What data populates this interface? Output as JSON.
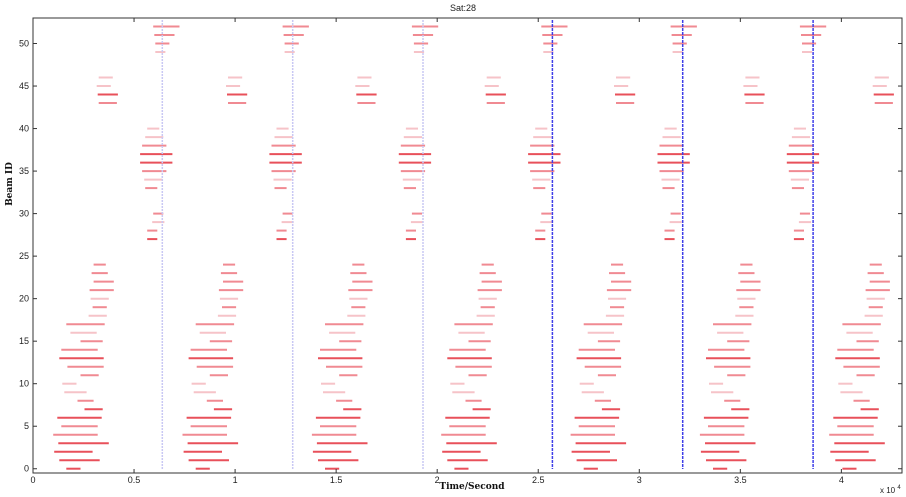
{
  "chart_data": {
    "type": "scatter",
    "title": "Sat:28",
    "xlabel": "Time/Second",
    "ylabel": "Beam ID",
    "x_multiplier_label": "x 10",
    "x_multiplier_exp": "4",
    "xlim": [
      0,
      43000
    ],
    "ylim": [
      -0.5,
      53
    ],
    "xticks": [
      0,
      5000,
      10000,
      15000,
      20000,
      25000,
      30000,
      35000,
      40000
    ],
    "xtick_labels": [
      "0",
      "0.5",
      "1",
      "1.5",
      "2",
      "2.5",
      "3",
      "3.5",
      "4"
    ],
    "yticks": [
      0,
      5,
      10,
      15,
      20,
      25,
      30,
      35,
      40,
      45,
      50
    ],
    "ytick_labels": [
      "0",
      "5",
      "10",
      "15",
      "20",
      "25",
      "30",
      "35",
      "40",
      "45",
      "50"
    ],
    "grid": false,
    "colors": {
      "beam_strong": "#e8505a",
      "beam_medium": "#f08a92",
      "beam_light": "#f6c3c8",
      "marker_light": "#c9c8f4",
      "marker_dark": "#3f3fe8"
    },
    "pass_period": 6400,
    "first_pass_center": 300,
    "num_passes": 7,
    "vertical_markers": [
      {
        "x": 6400,
        "style": "light"
      },
      {
        "x": 12850,
        "style": "light"
      },
      {
        "x": 19300,
        "style": "light"
      },
      {
        "x": 25700,
        "style": "dark"
      },
      {
        "x": 32150,
        "style": "dark"
      },
      {
        "x": 38600,
        "style": "dark"
      }
    ],
    "beam_profile": [
      {
        "beam": 0,
        "offset": 1700,
        "half_width": 350,
        "intensity": "strong"
      },
      {
        "beam": 1,
        "offset": 2000,
        "half_width": 1000,
        "intensity": "strong"
      },
      {
        "beam": 2,
        "offset": 1700,
        "half_width": 950,
        "intensity": "strong"
      },
      {
        "beam": 3,
        "offset": 2200,
        "half_width": 1250,
        "intensity": "strong"
      },
      {
        "beam": 4,
        "offset": 1800,
        "half_width": 1100,
        "intensity": "medium"
      },
      {
        "beam": 5,
        "offset": 2000,
        "half_width": 900,
        "intensity": "medium"
      },
      {
        "beam": 6,
        "offset": 2000,
        "half_width": 1100,
        "intensity": "strong"
      },
      {
        "beam": 7,
        "offset": 2700,
        "half_width": 450,
        "intensity": "strong"
      },
      {
        "beam": 8,
        "offset": 2300,
        "half_width": 400,
        "intensity": "medium"
      },
      {
        "beam": 9,
        "offset": 1800,
        "half_width": 550,
        "intensity": "light"
      },
      {
        "beam": 10,
        "offset": 1500,
        "half_width": 350,
        "intensity": "light"
      },
      {
        "beam": 11,
        "offset": 2500,
        "half_width": 450,
        "intensity": "medium"
      },
      {
        "beam": 12,
        "offset": 2300,
        "half_width": 900,
        "intensity": "medium"
      },
      {
        "beam": 13,
        "offset": 2100,
        "half_width": 1100,
        "intensity": "strong"
      },
      {
        "beam": 14,
        "offset": 2000,
        "half_width": 900,
        "intensity": "medium"
      },
      {
        "beam": 15,
        "offset": 2600,
        "half_width": 550,
        "intensity": "medium"
      },
      {
        "beam": 16,
        "offset": 2200,
        "half_width": 650,
        "intensity": "light"
      },
      {
        "beam": 17,
        "offset": 2300,
        "half_width": 950,
        "intensity": "medium"
      },
      {
        "beam": 18,
        "offset": 2900,
        "half_width": 450,
        "intensity": "light"
      },
      {
        "beam": 19,
        "offset": 3000,
        "half_width": 350,
        "intensity": "medium"
      },
      {
        "beam": 20,
        "offset": 3000,
        "half_width": 450,
        "intensity": "light"
      },
      {
        "beam": 21,
        "offset": 3100,
        "half_width": 600,
        "intensity": "medium"
      },
      {
        "beam": 22,
        "offset": 3200,
        "half_width": 500,
        "intensity": "medium"
      },
      {
        "beam": 23,
        "offset": 3000,
        "half_width": 400,
        "intensity": "medium"
      },
      {
        "beam": 24,
        "offset": 3000,
        "half_width": 300,
        "intensity": "medium"
      },
      {
        "beam": 27,
        "offset": 5600,
        "half_width": 250,
        "intensity": "strong"
      },
      {
        "beam": 28,
        "offset": 5600,
        "half_width": 250,
        "intensity": "medium"
      },
      {
        "beam": 29,
        "offset": 5900,
        "half_width": 300,
        "intensity": "light"
      },
      {
        "beam": 30,
        "offset": 5900,
        "half_width": 250,
        "intensity": "medium"
      },
      {
        "beam": 33,
        "offset": 5550,
        "half_width": 300,
        "intensity": "medium"
      },
      {
        "beam": 34,
        "offset": 5650,
        "half_width": 450,
        "intensity": "light"
      },
      {
        "beam": 35,
        "offset": 5700,
        "half_width": 600,
        "intensity": "medium"
      },
      {
        "beam": 36,
        "offset": 5800,
        "half_width": 800,
        "intensity": "strong"
      },
      {
        "beam": 37,
        "offset": 5800,
        "half_width": 800,
        "intensity": "strong"
      },
      {
        "beam": 38,
        "offset": 5700,
        "half_width": 600,
        "intensity": "medium"
      },
      {
        "beam": 39,
        "offset": 5700,
        "half_width": 450,
        "intensity": "light"
      },
      {
        "beam": 40,
        "offset": 5650,
        "half_width": 300,
        "intensity": "light"
      },
      {
        "beam": 43,
        "offset": 3400,
        "half_width": 450,
        "intensity": "medium"
      },
      {
        "beam": 44,
        "offset": 3400,
        "half_width": 500,
        "intensity": "strong"
      },
      {
        "beam": 45,
        "offset": 3200,
        "half_width": 350,
        "intensity": "light"
      },
      {
        "beam": 46,
        "offset": 3300,
        "half_width": 350,
        "intensity": "light"
      },
      {
        "beam": 49,
        "offset": 6000,
        "half_width": 250,
        "intensity": "light"
      },
      {
        "beam": 50,
        "offset": 6100,
        "half_width": 350,
        "intensity": "medium"
      },
      {
        "beam": 51,
        "offset": 6200,
        "half_width": 500,
        "intensity": "medium"
      },
      {
        "beam": 52,
        "offset": 6300,
        "half_width": 650,
        "intensity": "medium"
      }
    ]
  }
}
